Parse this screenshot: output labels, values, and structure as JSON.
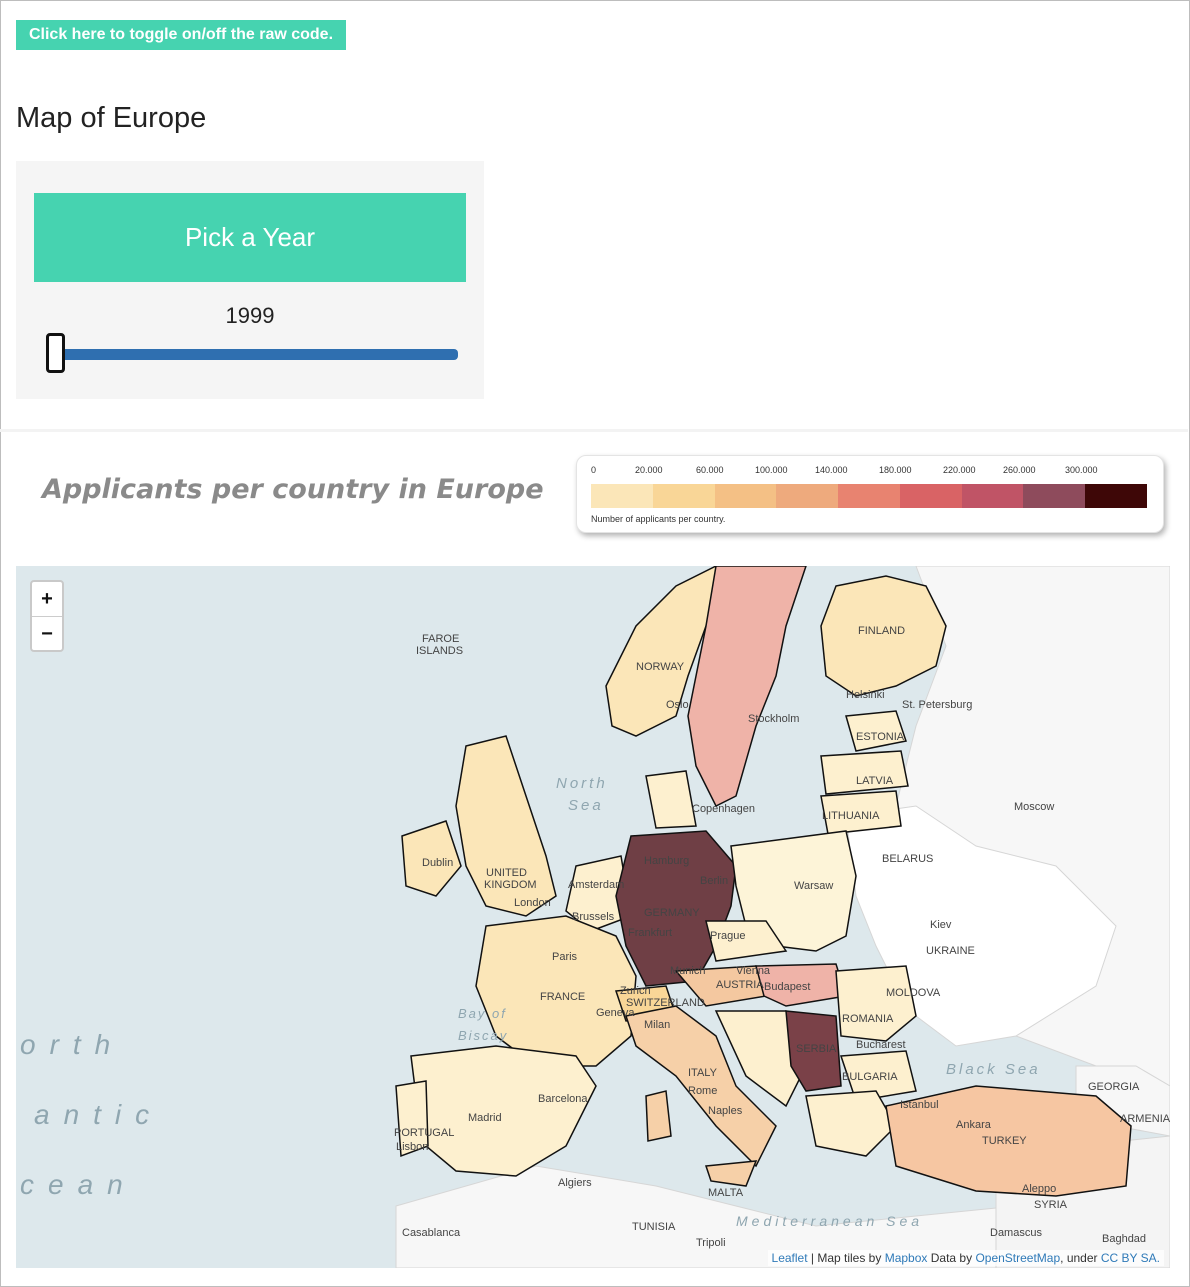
{
  "header": {
    "toggle_label": "Click here to toggle on/off the raw code.",
    "title": "Map of Europe"
  },
  "controls": {
    "pick_year_label": "Pick a Year",
    "year": "1999",
    "slider_position": 0
  },
  "map_section": {
    "heading": "Applicants per country in Europe",
    "legend": {
      "ticks": [
        "0",
        "20.000",
        "60.000",
        "100.000",
        "140.000",
        "180.000",
        "220.000",
        "260.000",
        "300.000"
      ],
      "colors": [
        "#fbe6b8",
        "#f9d697",
        "#f4c085",
        "#eeaa7d",
        "#e88370",
        "#d96365",
        "#c05466",
        "#8e4b5c",
        "#3e0707"
      ],
      "caption": "Number of applicants per country."
    }
  },
  "map": {
    "zoom_in": "+",
    "zoom_out": "−",
    "water_labels": [
      "North Sea",
      "Bay of Biscay",
      "Black Sea",
      "Mediterranean Sea",
      "North Atlantic Ocean"
    ],
    "places": [
      "FAROE ISLANDS",
      "NORWAY",
      "Oslo",
      "Stockholm",
      "FINLAND",
      "Helsinki",
      "St. Petersburg",
      "ESTONIA",
      "LATVIA",
      "LITHUANIA",
      "Moscow",
      "BELARUS",
      "UNITED KINGDOM",
      "Dublin",
      "London",
      "Amsterdam",
      "Brussels",
      "Hamburg",
      "Berlin",
      "GERMANY",
      "Frankfurt",
      "Munich",
      "Warsaw",
      "Prague",
      "Kiev",
      "UKRAINE",
      "Paris",
      "FRANCE",
      "Zurich",
      "SWITZERLAND",
      "Geneva",
      "Milan",
      "Vienna",
      "AUSTRIA",
      "Budapest",
      "MOLDOVA",
      "ROMANIA",
      "Bucharest",
      "SERBIA",
      "BULGARIA",
      "ITALY",
      "Rome",
      "Naples",
      "Madrid",
      "Barcelona",
      "PORTUGAL",
      "Lisbon",
      "Algiers",
      "MALTA",
      "TUNISIA",
      "Tripoli",
      "Casablanca",
      "Istanbul",
      "Ankara",
      "TURKEY",
      "GEORGIA",
      "ARMENIA",
      "Aleppo",
      "SYRIA",
      "Damascus",
      "Baghdad",
      "Copenhagen"
    ],
    "attribution": {
      "leaflet": "Leaflet",
      "sep1": " | Map tiles by ",
      "mapbox": "Mapbox",
      "sep2": " Data by ",
      "osm": "OpenStreetMap",
      "sep3": ", under ",
      "license": "CC BY SA."
    }
  }
}
